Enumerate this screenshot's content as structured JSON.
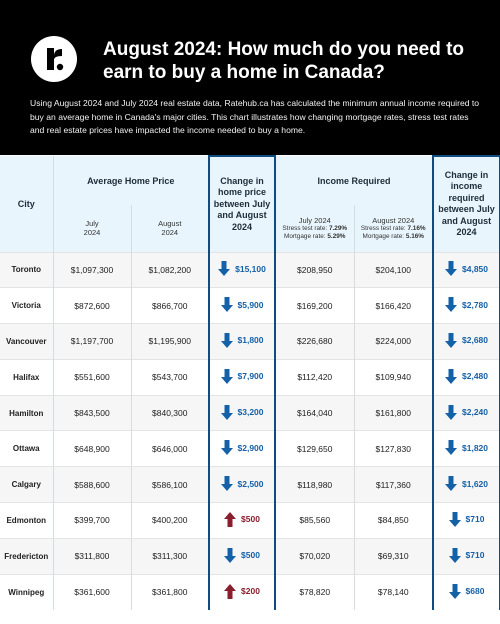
{
  "header": {
    "logo_letter": "r",
    "title": "August 2024: How much do you need to earn to buy a home in Canada?",
    "description": "Using August 2024 and July 2024 real estate data, Ratehub.ca has calculated the minimum annual income required to buy an average home in Canada's major cities. This chart illustrates how changing mortgage rates, stress test rates and real estate prices have impacted the income needed to buy a home."
  },
  "table": {
    "city_header": "City",
    "price_group_header": "Average Home Price",
    "price_change_header": "Change in home price between July and August 2024",
    "income_group_header": "Income Required",
    "income_change_header": "Change in income required between July and August 2024",
    "july_label": "July 2024",
    "august_label": "August 2024",
    "july_stress_label": "Stress test rate:",
    "july_stress_rate": "7.29%",
    "july_mortgage_label": "Mortgage rate:",
    "july_mortgage_rate": "5.29%",
    "august_stress_label": "Stress test rate:",
    "august_stress_rate": "7.16%",
    "august_mortgage_label": "Mortgage rate:",
    "august_mortgage_rate": "5.16%",
    "rows": [
      {
        "city": "Toronto",
        "price_july": "$1,097,300",
        "price_aug": "$1,082,200",
        "price_change": "$15,100",
        "price_dir": "down",
        "income_july": "$208,950",
        "income_aug": "$204,100",
        "income_change": "$4,850",
        "income_dir": "down"
      },
      {
        "city": "Victoria",
        "price_july": "$872,600",
        "price_aug": "$866,700",
        "price_change": "$5,900",
        "price_dir": "down",
        "income_july": "$169,200",
        "income_aug": "$166,420",
        "income_change": "$2,780",
        "income_dir": "down"
      },
      {
        "city": "Vancouver",
        "price_july": "$1,197,700",
        "price_aug": "$1,195,900",
        "price_change": "$1,800",
        "price_dir": "down",
        "income_july": "$226,680",
        "income_aug": "$224,000",
        "income_change": "$2,680",
        "income_dir": "down"
      },
      {
        "city": "Halifax",
        "price_july": "$551,600",
        "price_aug": "$543,700",
        "price_change": "$7,900",
        "price_dir": "down",
        "income_july": "$112,420",
        "income_aug": "$109,940",
        "income_change": "$2,480",
        "income_dir": "down"
      },
      {
        "city": "Hamilton",
        "price_july": "$843,500",
        "price_aug": "$840,300",
        "price_change": "$3,200",
        "price_dir": "down",
        "income_july": "$164,040",
        "income_aug": "$161,800",
        "income_change": "$2,240",
        "income_dir": "down"
      },
      {
        "city": "Ottawa",
        "price_july": "$648,900",
        "price_aug": "$646,000",
        "price_change": "$2,900",
        "price_dir": "down",
        "income_july": "$129,650",
        "income_aug": "$127,830",
        "income_change": "$1,820",
        "income_dir": "down"
      },
      {
        "city": "Calgary",
        "price_july": "$588,600",
        "price_aug": "$586,100",
        "price_change": "$2,500",
        "price_dir": "down",
        "income_july": "$118,980",
        "income_aug": "$117,360",
        "income_change": "$1,620",
        "income_dir": "down"
      },
      {
        "city": "Edmonton",
        "price_july": "$399,700",
        "price_aug": "$400,200",
        "price_change": "$500",
        "price_dir": "up",
        "income_july": "$85,560",
        "income_aug": "$84,850",
        "income_change": "$710",
        "income_dir": "down"
      },
      {
        "city": "Fredericton",
        "price_july": "$311,800",
        "price_aug": "$311,300",
        "price_change": "$500",
        "price_dir": "down",
        "income_july": "$70,020",
        "income_aug": "$69,310",
        "income_change": "$710",
        "income_dir": "down"
      },
      {
        "city": "Winnipeg",
        "price_july": "$361,600",
        "price_aug": "$361,800",
        "price_change": "$200",
        "price_dir": "up",
        "income_july": "$78,820",
        "income_aug": "$78,140",
        "income_change": "$680",
        "income_dir": "down"
      }
    ]
  },
  "colors": {
    "down_arrow": "#1561a8",
    "up_arrow": "#8b1e2c",
    "header_bg": "#000000",
    "table_header_bg": "#e9f5fc"
  }
}
